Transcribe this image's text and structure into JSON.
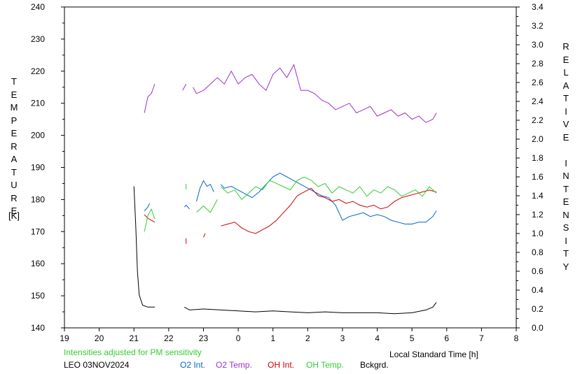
{
  "chart_data": {
    "type": "line",
    "title": "",
    "y_left_label": "TEMPERATURE",
    "y_left_unit": "[K]",
    "y_right_label": "RELATIVE INTENSITY",
    "xlabel": "Local Standard Time [h]",
    "note": "Intensities adjusted for PM sensitivity",
    "station_date": "LEO 03NOV2024",
    "x_ticks": [
      "19",
      "20",
      "21",
      "22",
      "23",
      "0",
      "1",
      "2",
      "3",
      "4",
      "5",
      "6",
      "7",
      "8"
    ],
    "y_left_ticks": [
      "240",
      "230",
      "220",
      "210",
      "200",
      "190",
      "180",
      "170",
      "160",
      "150",
      "140"
    ],
    "y_right_ticks": [
      "3.4",
      "3.2",
      "3.0",
      "2.8",
      "2.6",
      "2.4",
      "2.2",
      "2.0",
      "1.8",
      "1.6",
      "1.4",
      "1.2",
      "1.0",
      "0.8",
      "0.6",
      "0.4",
      "0.2",
      "0.0"
    ],
    "xlim": [
      19,
      32
    ],
    "ylim_left": [
      140,
      240
    ],
    "ylim_right": [
      0.0,
      3.4
    ],
    "series": [
      {
        "name": "O2 Int.",
        "color": "#0066cc",
        "segments": [
          [
            [
              21.3,
              1.24
            ],
            [
              21.4,
              1.28
            ],
            [
              21.45,
              1.32
            ]
          ],
          [
            [
              22.45,
              1.28
            ],
            [
              22.5,
              1.3
            ],
            [
              22.6,
              1.26
            ]
          ],
          [
            [
              22.8,
              1.34
            ],
            [
              22.9,
              1.48
            ],
            [
              23.0,
              1.56
            ],
            [
              23.1,
              1.5
            ],
            [
              23.2,
              1.52
            ],
            [
              23.3,
              1.44
            ]
          ],
          [
            [
              23.5,
              1.52
            ],
            [
              23.6,
              1.48
            ],
            [
              23.8,
              1.5
            ],
            [
              24.0,
              1.46
            ],
            [
              24.2,
              1.42
            ],
            [
              24.4,
              1.38
            ],
            [
              24.6,
              1.44
            ],
            [
              24.8,
              1.52
            ],
            [
              25.0,
              1.6
            ],
            [
              25.2,
              1.64
            ],
            [
              25.4,
              1.6
            ],
            [
              25.6,
              1.56
            ],
            [
              25.8,
              1.52
            ],
            [
              26.0,
              1.48
            ],
            [
              26.2,
              1.44
            ],
            [
              26.4,
              1.4
            ],
            [
              26.6,
              1.38
            ],
            [
              26.8,
              1.3
            ],
            [
              27.0,
              1.14
            ],
            [
              27.2,
              1.18
            ],
            [
              27.4,
              1.2
            ],
            [
              27.6,
              1.22
            ],
            [
              27.8,
              1.18
            ],
            [
              28.0,
              1.2
            ],
            [
              28.2,
              1.18
            ],
            [
              28.4,
              1.14
            ],
            [
              28.6,
              1.12
            ],
            [
              28.8,
              1.1
            ],
            [
              29.0,
              1.1
            ],
            [
              29.2,
              1.12
            ],
            [
              29.4,
              1.12
            ],
            [
              29.6,
              1.18
            ],
            [
              29.7,
              1.24
            ]
          ]
        ]
      },
      {
        "name": "O2 Temp.",
        "color": "#9933cc",
        "segments": [
          [
            [
              21.3,
              207
            ],
            [
              21.4,
              212
            ],
            [
              21.5,
              213
            ],
            [
              21.6,
              216
            ]
          ],
          [
            [
              22.4,
              214
            ],
            [
              22.5,
              216
            ]
          ],
          [
            [
              22.7,
              215
            ],
            [
              22.8,
              213
            ],
            [
              23.0,
              214
            ],
            [
              23.2,
              216
            ],
            [
              23.4,
              218
            ],
            [
              23.6,
              216
            ],
            [
              23.8,
              220
            ],
            [
              24.0,
              216
            ],
            [
              24.2,
              218
            ],
            [
              24.4,
              219
            ],
            [
              24.6,
              216
            ],
            [
              24.8,
              214
            ],
            [
              25.0,
              219
            ],
            [
              25.2,
              221
            ],
            [
              25.4,
              218
            ],
            [
              25.6,
              222
            ],
            [
              25.8,
              214
            ],
            [
              26.0,
              214
            ],
            [
              26.2,
              213
            ],
            [
              26.4,
              211
            ],
            [
              26.6,
              210
            ],
            [
              26.8,
              208
            ],
            [
              27.0,
              209
            ],
            [
              27.2,
              210
            ],
            [
              27.4,
              207
            ],
            [
              27.6,
              208
            ],
            [
              27.8,
              209
            ],
            [
              28.0,
              206
            ],
            [
              28.2,
              207
            ],
            [
              28.4,
              208
            ],
            [
              28.6,
              206
            ],
            [
              28.8,
              207
            ],
            [
              29.0,
              205
            ],
            [
              29.2,
              206
            ],
            [
              29.4,
              204
            ],
            [
              29.6,
              205
            ],
            [
              29.7,
              207
            ]
          ]
        ]
      },
      {
        "name": "OH Int.",
        "color": "#cc0000",
        "segments": [
          [
            [
              21.3,
              1.2
            ],
            [
              21.4,
              1.16
            ],
            [
              21.5,
              1.14
            ],
            [
              21.6,
              1.12
            ]
          ],
          [
            [
              22.5,
              0.92
            ]
          ],
          [
            [
              23.0,
              0.96
            ],
            [
              23.05,
              1.0
            ]
          ],
          [
            [
              23.5,
              1.08
            ],
            [
              23.7,
              1.1
            ],
            [
              23.9,
              1.12
            ],
            [
              24.1,
              1.06
            ],
            [
              24.3,
              1.02
            ],
            [
              24.5,
              1.0
            ],
            [
              24.7,
              1.04
            ],
            [
              24.9,
              1.08
            ],
            [
              25.1,
              1.14
            ],
            [
              25.3,
              1.22
            ],
            [
              25.5,
              1.3
            ],
            [
              25.7,
              1.4
            ],
            [
              25.9,
              1.44
            ],
            [
              26.1,
              1.48
            ],
            [
              26.3,
              1.4
            ],
            [
              26.5,
              1.38
            ],
            [
              26.7,
              1.34
            ],
            [
              26.9,
              1.36
            ],
            [
              27.1,
              1.32
            ],
            [
              27.3,
              1.34
            ],
            [
              27.5,
              1.3
            ],
            [
              27.7,
              1.28
            ],
            [
              27.9,
              1.3
            ],
            [
              28.1,
              1.26
            ],
            [
              28.3,
              1.28
            ],
            [
              28.5,
              1.34
            ],
            [
              28.7,
              1.38
            ],
            [
              28.9,
              1.4
            ],
            [
              29.1,
              1.42
            ],
            [
              29.3,
              1.44
            ],
            [
              29.5,
              1.46
            ],
            [
              29.7,
              1.44
            ]
          ]
        ]
      },
      {
        "name": "OH Temp.",
        "color": "#33cc33",
        "segments": [
          [
            [
              21.3,
              170
            ],
            [
              21.4,
              175
            ],
            [
              21.5,
              177
            ],
            [
              21.6,
              174
            ]
          ],
          [
            [
              22.5,
              184
            ]
          ],
          [
            [
              22.8,
              176
            ],
            [
              23.0,
              178
            ],
            [
              23.2,
              176
            ],
            [
              23.4,
              180
            ]
          ],
          [
            [
              23.5,
              184
            ],
            [
              23.7,
              182
            ],
            [
              23.9,
              183
            ],
            [
              24.1,
              180
            ],
            [
              24.3,
              182
            ],
            [
              24.5,
              184
            ],
            [
              24.7,
              183
            ],
            [
              24.9,
              186
            ],
            [
              25.1,
              185
            ],
            [
              25.3,
              184
            ],
            [
              25.5,
              183
            ],
            [
              25.7,
              186
            ],
            [
              25.9,
              187
            ],
            [
              26.1,
              186
            ],
            [
              26.3,
              184
            ],
            [
              26.5,
              185
            ],
            [
              26.7,
              182
            ],
            [
              26.9,
              184
            ],
            [
              27.1,
              183
            ],
            [
              27.3,
              182
            ],
            [
              27.5,
              184
            ],
            [
              27.7,
              181
            ],
            [
              27.9,
              183
            ],
            [
              28.1,
              182
            ],
            [
              28.3,
              184
            ],
            [
              28.5,
              183
            ],
            [
              28.7,
              181
            ],
            [
              28.9,
              182
            ],
            [
              29.1,
              183
            ],
            [
              29.3,
              181
            ],
            [
              29.5,
              184
            ],
            [
              29.7,
              182
            ]
          ]
        ]
      },
      {
        "name": "Bckgrd.",
        "color": "#000000",
        "segments": [
          [
            [
              21.0,
              1.5
            ],
            [
              21.05,
              1.1
            ],
            [
              21.1,
              0.6
            ],
            [
              21.15,
              0.35
            ],
            [
              21.25,
              0.24
            ],
            [
              21.4,
              0.22
            ],
            [
              21.6,
              0.22
            ]
          ],
          [
            [
              22.45,
              0.22
            ],
            [
              22.6,
              0.19
            ],
            [
              23.0,
              0.2
            ],
            [
              23.5,
              0.19
            ],
            [
              24.0,
              0.18
            ],
            [
              24.5,
              0.17
            ],
            [
              25.0,
              0.18
            ],
            [
              25.5,
              0.17
            ],
            [
              26.0,
              0.16
            ],
            [
              26.5,
              0.17
            ],
            [
              27.0,
              0.16
            ],
            [
              27.5,
              0.16
            ],
            [
              28.0,
              0.16
            ],
            [
              28.5,
              0.15
            ],
            [
              29.0,
              0.16
            ],
            [
              29.4,
              0.19
            ],
            [
              29.6,
              0.22
            ],
            [
              29.7,
              0.27
            ]
          ]
        ]
      }
    ]
  }
}
